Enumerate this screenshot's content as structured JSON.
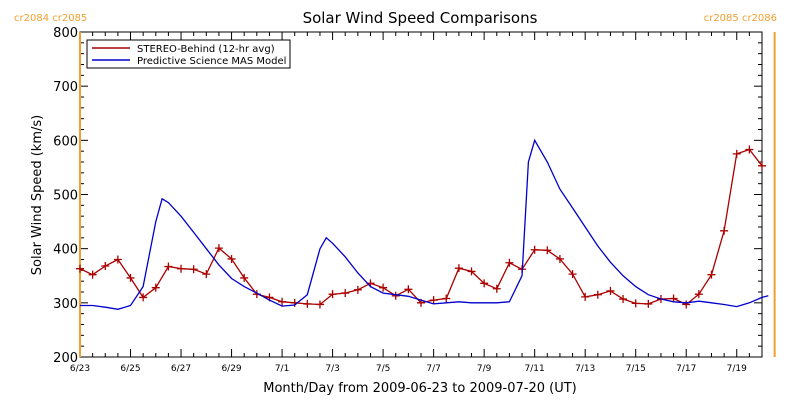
{
  "chart_data": {
    "type": "line",
    "title": "Solar Wind Speed Comparisons",
    "xlabel": "Month/Day from 2009-06-23 to 2009-07-20 (UT)",
    "ylabel": "Solar Wind Speed (km/s)",
    "x_range": [
      "2009-06-23",
      "2009-07-20"
    ],
    "ylim": [
      200,
      800
    ],
    "y_ticks": [
      200,
      300,
      400,
      500,
      600,
      700,
      800
    ],
    "x_ticks": [
      {
        "date": "2009-06-23",
        "label": "6/23"
      },
      {
        "date": "2009-06-25",
        "label": "6/25"
      },
      {
        "date": "2009-06-27",
        "label": "6/27"
      },
      {
        "date": "2009-06-29",
        "label": "6/29"
      },
      {
        "date": "2009-07-01",
        "label": "7/1"
      },
      {
        "date": "2009-07-03",
        "label": "7/3"
      },
      {
        "date": "2009-07-05",
        "label": "7/5"
      },
      {
        "date": "2009-07-07",
        "label": "7/7"
      },
      {
        "date": "2009-07-09",
        "label": "7/9"
      },
      {
        "date": "2009-07-11",
        "label": "7/11"
      },
      {
        "date": "2009-07-13",
        "label": "7/13"
      },
      {
        "date": "2009-07-15",
        "label": "7/15"
      },
      {
        "date": "2009-07-17",
        "label": "7/17"
      },
      {
        "date": "2009-07-19",
        "label": "7/19"
      }
    ],
    "legend_position": "top-left",
    "carrington_markers": [
      {
        "date": "2009-06-23",
        "label_top": "cr2084 cr2085",
        "label_anchor": "left"
      },
      {
        "date": "2009-07-20 12:00",
        "label_top": "cr2085 cr2086",
        "label_anchor": "right"
      }
    ],
    "marker_color": "#f0a030",
    "series": [
      {
        "name": "STEREO-Behind (12-hr avg)",
        "color": "#aa0000",
        "marker": "plus",
        "points": [
          [
            "2009-06-23 00:00",
            363
          ],
          [
            "2009-06-23 12:00",
            352
          ],
          [
            "2009-06-24 00:00",
            368
          ],
          [
            "2009-06-24 12:00",
            380
          ],
          [
            "2009-06-25 00:00",
            346
          ],
          [
            "2009-06-25 12:00",
            310
          ],
          [
            "2009-06-26 00:00",
            328
          ],
          [
            "2009-06-26 12:00",
            367
          ],
          [
            "2009-06-27 00:00",
            363
          ],
          [
            "2009-06-27 12:00",
            362
          ],
          [
            "2009-06-28 00:00",
            353
          ],
          [
            "2009-06-28 12:00",
            401
          ],
          [
            "2009-06-29 00:00",
            381
          ],
          [
            "2009-06-29 12:00",
            346
          ],
          [
            "2009-06-30 00:00",
            316
          ],
          [
            "2009-06-30 12:00",
            310
          ],
          [
            "2009-07-01 00:00",
            302
          ],
          [
            "2009-07-01 12:00",
            300
          ],
          [
            "2009-07-02 00:00",
            298
          ],
          [
            "2009-07-02 12:00",
            297
          ],
          [
            "2009-07-03 00:00",
            316
          ],
          [
            "2009-07-03 12:00",
            318
          ],
          [
            "2009-07-04 00:00",
            324
          ],
          [
            "2009-07-04 12:00",
            336
          ],
          [
            "2009-07-05 00:00",
            328
          ],
          [
            "2009-07-05 12:00",
            313
          ],
          [
            "2009-07-06 00:00",
            325
          ],
          [
            "2009-07-06 12:00",
            300
          ],
          [
            "2009-07-07 00:00",
            305
          ],
          [
            "2009-07-07 12:00",
            308
          ],
          [
            "2009-07-08 00:00",
            364
          ],
          [
            "2009-07-08 12:00",
            358
          ],
          [
            "2009-07-09 00:00",
            336
          ],
          [
            "2009-07-09 12:00",
            326
          ],
          [
            "2009-07-10 00:00",
            374
          ],
          [
            "2009-07-10 12:00",
            362
          ],
          [
            "2009-07-11 00:00",
            398
          ],
          [
            "2009-07-11 12:00",
            397
          ],
          [
            "2009-07-12 00:00",
            381
          ],
          [
            "2009-07-12 12:00",
            353
          ],
          [
            "2009-07-13 00:00",
            311
          ],
          [
            "2009-07-13 12:00",
            315
          ],
          [
            "2009-07-14 00:00",
            322
          ],
          [
            "2009-07-14 12:00",
            307
          ],
          [
            "2009-07-15 00:00",
            299
          ],
          [
            "2009-07-15 12:00",
            298
          ],
          [
            "2009-07-16 00:00",
            307
          ],
          [
            "2009-07-16 12:00",
            308
          ],
          [
            "2009-07-17 00:00",
            297
          ],
          [
            "2009-07-17 12:00",
            316
          ],
          [
            "2009-07-18 00:00",
            352
          ],
          [
            "2009-07-18 12:00",
            433
          ],
          [
            "2009-07-19 00:00",
            575
          ],
          [
            "2009-07-19 12:00",
            583
          ],
          [
            "2009-07-20 00:00",
            553
          ]
        ]
      },
      {
        "name": "Predictive Science MAS Model",
        "color": "#0000cc",
        "marker": "none",
        "points": [
          [
            "2009-06-23 00:00",
            295
          ],
          [
            "2009-06-23 12:00",
            295
          ],
          [
            "2009-06-24 00:00",
            292
          ],
          [
            "2009-06-24 12:00",
            288
          ],
          [
            "2009-06-25 00:00",
            295
          ],
          [
            "2009-06-25 12:00",
            330
          ],
          [
            "2009-06-26 00:00",
            450
          ],
          [
            "2009-06-26 06:00",
            492
          ],
          [
            "2009-06-26 12:00",
            485
          ],
          [
            "2009-06-27 00:00",
            460
          ],
          [
            "2009-06-27 12:00",
            430
          ],
          [
            "2009-06-28 00:00",
            400
          ],
          [
            "2009-06-28 12:00",
            370
          ],
          [
            "2009-06-29 00:00",
            345
          ],
          [
            "2009-06-29 12:00",
            330
          ],
          [
            "2009-06-30 00:00",
            318
          ],
          [
            "2009-06-30 12:00",
            305
          ],
          [
            "2009-07-01 00:00",
            294
          ],
          [
            "2009-07-01 12:00",
            296
          ],
          [
            "2009-07-02 00:00",
            315
          ],
          [
            "2009-07-02 12:00",
            400
          ],
          [
            "2009-07-02 18:00",
            420
          ],
          [
            "2009-07-03 00:00",
            410
          ],
          [
            "2009-07-03 12:00",
            385
          ],
          [
            "2009-07-04 00:00",
            355
          ],
          [
            "2009-07-04 12:00",
            330
          ],
          [
            "2009-07-05 00:00",
            318
          ],
          [
            "2009-07-05 12:00",
            315
          ],
          [
            "2009-07-06 00:00",
            312
          ],
          [
            "2009-07-06 12:00",
            305
          ],
          [
            "2009-07-07 00:00",
            298
          ],
          [
            "2009-07-07 12:00",
            300
          ],
          [
            "2009-07-08 00:00",
            302
          ],
          [
            "2009-07-08 12:00",
            300
          ],
          [
            "2009-07-09 00:00",
            300
          ],
          [
            "2009-07-09 12:00",
            300
          ],
          [
            "2009-07-10 00:00",
            302
          ],
          [
            "2009-07-10 12:00",
            350
          ],
          [
            "2009-07-10 18:00",
            560
          ],
          [
            "2009-07-11 00:00",
            600
          ],
          [
            "2009-07-11 12:00",
            560
          ],
          [
            "2009-07-12 00:00",
            510
          ],
          [
            "2009-07-12 12:00",
            475
          ],
          [
            "2009-07-13 00:00",
            440
          ],
          [
            "2009-07-13 12:00",
            405
          ],
          [
            "2009-07-14 00:00",
            375
          ],
          [
            "2009-07-14 12:00",
            350
          ],
          [
            "2009-07-15 00:00",
            330
          ],
          [
            "2009-07-15 12:00",
            315
          ],
          [
            "2009-07-16 00:00",
            307
          ],
          [
            "2009-07-16 12:00",
            302
          ],
          [
            "2009-07-17 00:00",
            300
          ],
          [
            "2009-07-17 12:00",
            303
          ],
          [
            "2009-07-18 00:00",
            300
          ],
          [
            "2009-07-18 12:00",
            297
          ],
          [
            "2009-07-19 00:00",
            293
          ],
          [
            "2009-07-19 12:00",
            300
          ],
          [
            "2009-07-20 00:00",
            310
          ],
          [
            "2009-07-20 06:00",
            313
          ]
        ]
      }
    ]
  }
}
